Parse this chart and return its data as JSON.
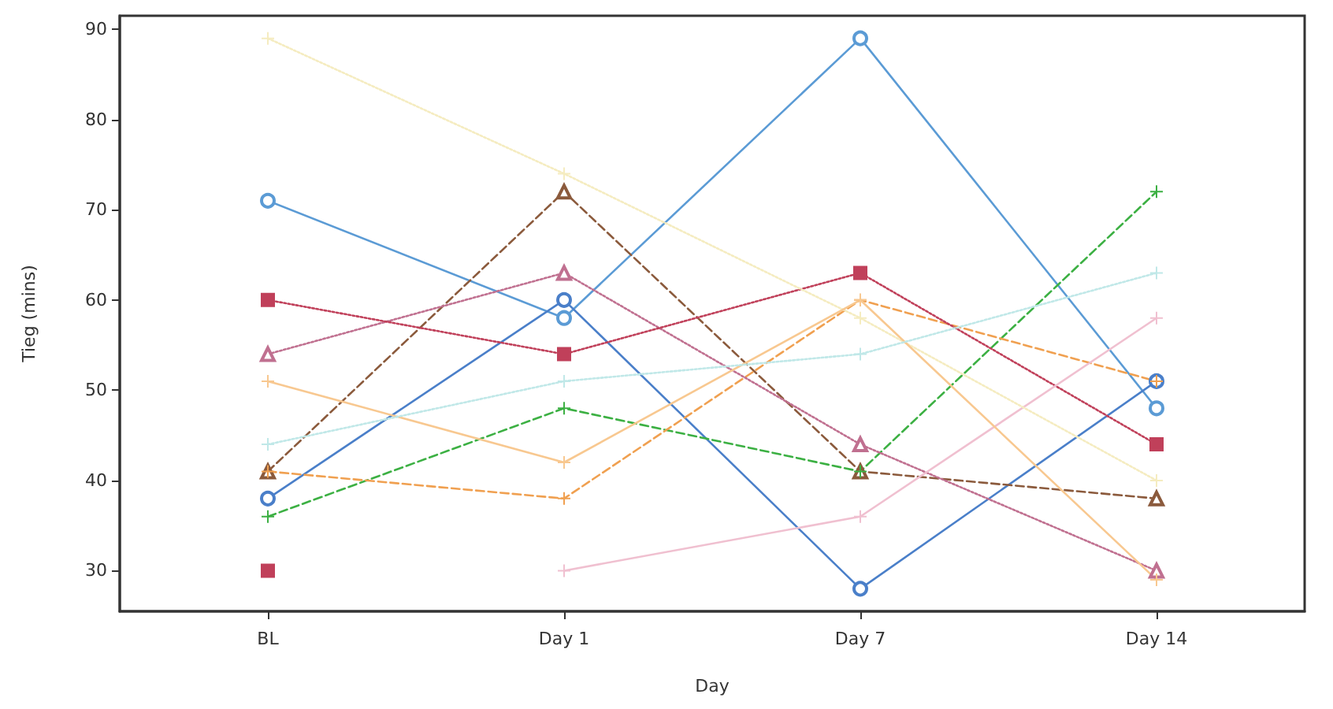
{
  "chart_data": {
    "type": "line",
    "xlabel": "Day",
    "ylabel": "Tieg (mins)",
    "categories": [
      "BL",
      "Day 1",
      "Day 7",
      "Day 14"
    ],
    "ylim": [
      25.5,
      91.5
    ],
    "yticks": [
      30,
      40,
      50,
      60,
      70,
      80,
      90
    ],
    "grid": false,
    "series": [
      {
        "color": "#5b9bd5",
        "values": [
          71,
          58,
          89,
          48
        ],
        "marker": "circle",
        "line_style": "solid"
      },
      {
        "color": "#4a7fc9",
        "values": [
          38,
          60,
          28,
          51
        ],
        "marker": "circle",
        "line_style": "solid"
      },
      {
        "color": "#8b5a3c",
        "values": [
          41,
          72,
          41,
          38
        ],
        "marker": "triangle",
        "line_style": "dashed"
      },
      {
        "color": "#3cb043",
        "values": [
          36,
          48,
          41,
          72
        ],
        "marker": "cross",
        "line_style": "dashed"
      },
      {
        "color": "#f0a050",
        "values": [
          41,
          38,
          60,
          51
        ],
        "marker": "cross",
        "line_style": "dashed"
      },
      {
        "color": "#c07090",
        "values": [
          54,
          63,
          44,
          30
        ],
        "marker": "triangle",
        "line_style": "dotted"
      },
      {
        "color": "#c0405a",
        "values": [
          60,
          54,
          63,
          44
        ],
        "marker": "square",
        "line_style": "dotted"
      },
      {
        "color": "#c0405a",
        "values": [
          30,
          null,
          null,
          null
        ],
        "marker": "square",
        "line_style": "dotted"
      },
      {
        "color": "#f0c0d0",
        "values": [
          null,
          30,
          36,
          58
        ],
        "marker": "cross",
        "line_style": "solid"
      },
      {
        "color": "#f5ecc0",
        "values": [
          89,
          74,
          58,
          40
        ],
        "marker": "cross",
        "line_style": "dotted"
      },
      {
        "color": "#f8c890",
        "values": [
          51,
          42,
          60,
          29
        ],
        "marker": "cross",
        "line_style": "solid"
      },
      {
        "color": "#c0e8e8",
        "values": [
          44,
          51,
          54,
          63
        ],
        "marker": "cross",
        "line_style": "dotted"
      }
    ]
  }
}
